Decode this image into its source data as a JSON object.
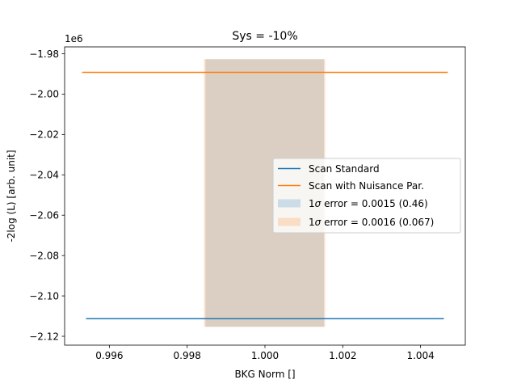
{
  "chart_data": {
    "type": "line",
    "title": "Sys = -10%",
    "xlabel": "BKG Norm []",
    "ylabel": "-2log (L) [arb. unit]",
    "y_offset_label": "1e6",
    "y_scale": 1000000,
    "xlim": [
      0.99485,
      1.00515
    ],
    "ylim": [
      -2124400,
      -1976600
    ],
    "x_ticks": [
      0.996,
      0.998,
      1.0,
      1.002,
      1.004
    ],
    "x_tick_labels": [
      "0.996",
      "0.998",
      "1.000",
      "1.002",
      "1.004"
    ],
    "y_ticks": [
      -1980000,
      -2000000,
      -2020000,
      -2040000,
      -2060000,
      -2080000,
      -2100000,
      -2120000
    ],
    "y_tick_labels": [
      "−1.98",
      "−2.00",
      "−2.02",
      "−2.04",
      "−2.06",
      "−2.08",
      "−2.10",
      "−2.12"
    ],
    "grid": false,
    "legend_position": "center-right",
    "series": [
      {
        "name": "Scan Standard",
        "color": "#1f77b4",
        "x": [
          0.9954,
          1.0046
        ],
        "y": [
          -2111300,
          -2111300
        ]
      },
      {
        "name": "Scan with Nuisance Par.",
        "color": "#ff7f0e",
        "x": [
          0.9953,
          1.0047
        ],
        "y": [
          -1989200,
          -1989200
        ]
      }
    ],
    "bands": [
      {
        "legend_prefix": "1",
        "legend_symbol": "σ",
        "legend_suffix": " error = 0.0015 (0.46)",
        "color": "#1f77b4",
        "opacity": 0.2,
        "x0": 0.99847,
        "x1": 1.00152,
        "y0": -2115300,
        "y1": -1982700
      },
      {
        "legend_prefix": "1",
        "legend_symbol": "σ",
        "legend_suffix": " error = 0.0016 (0.067)",
        "color": "#ff7f0e",
        "opacity": 0.2,
        "x0": 0.99843,
        "x1": 1.00155,
        "y0": -2115300,
        "y1": -1982700
      }
    ]
  }
}
